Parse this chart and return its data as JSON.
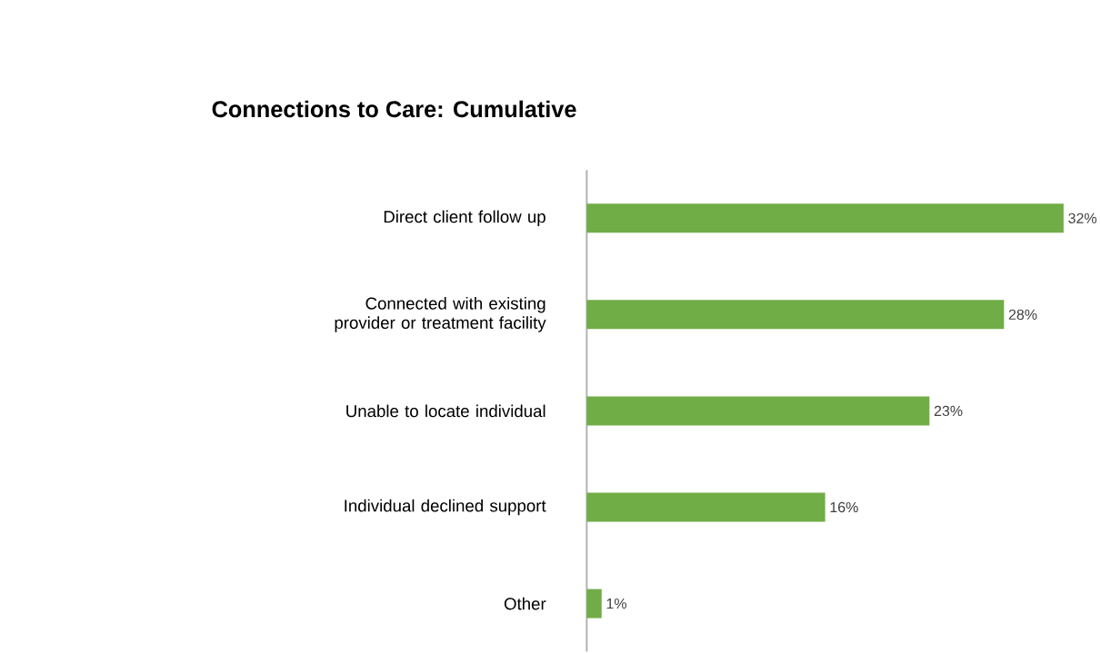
{
  "chart_data": {
    "type": "bar",
    "orientation": "horizontal",
    "title": "Connections to Care: Cumulative",
    "categories": [
      "Direct client follow up",
      "Connected with existing provider or treatment facility",
      "Unable to locate individual",
      "Individual declined support",
      "Other"
    ],
    "values": [
      32,
      28,
      23,
      16,
      1
    ],
    "value_labels": [
      "32%",
      "28%",
      "23%",
      "16%",
      "1%"
    ],
    "color": "#70ad47",
    "tick_labels": "y"
  }
}
